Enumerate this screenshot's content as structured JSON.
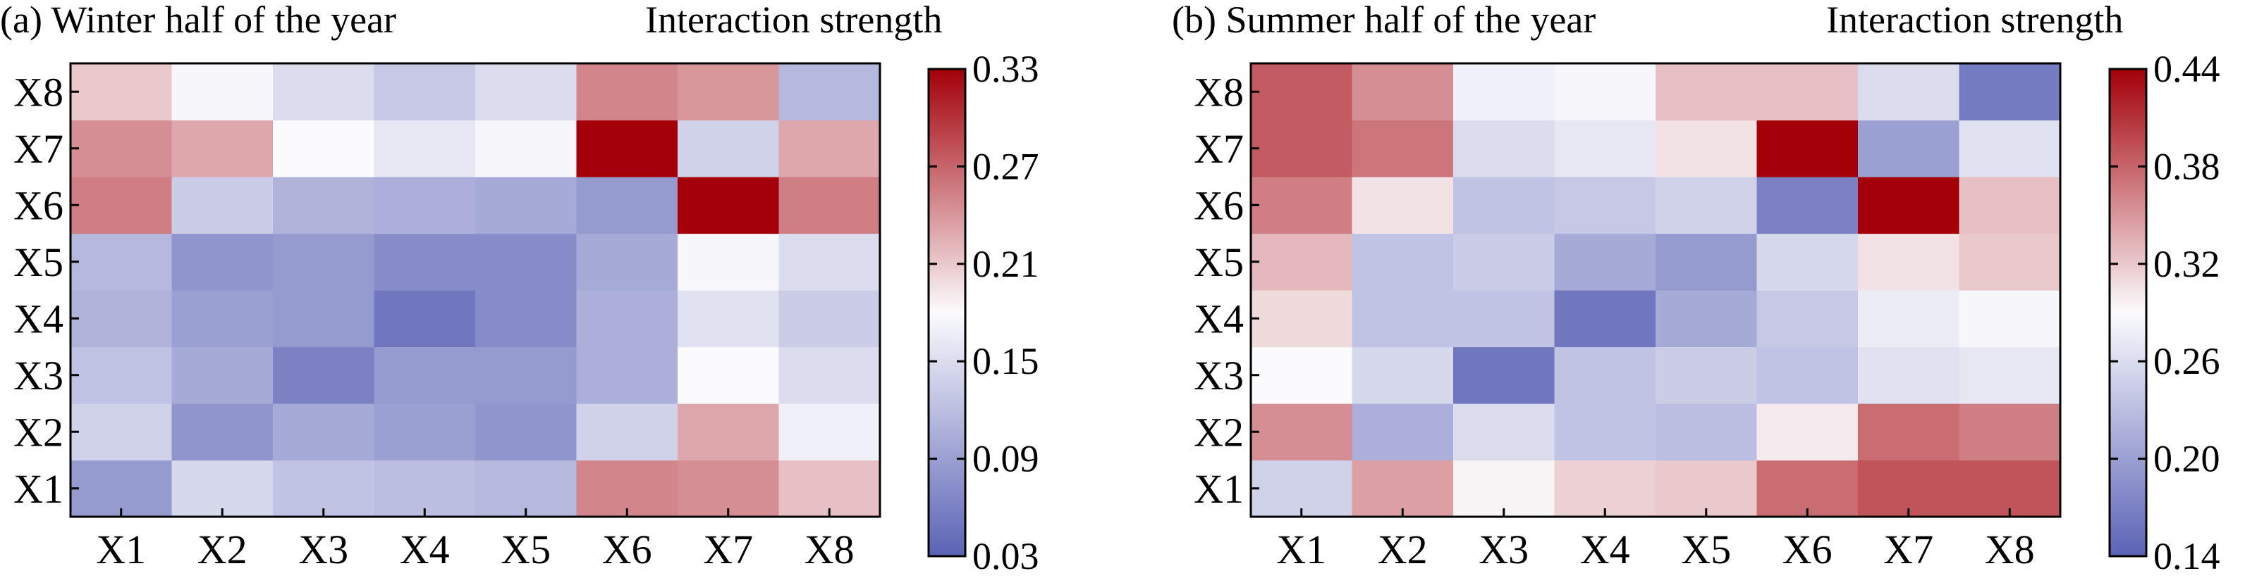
{
  "chart_data": [
    {
      "type": "heatmap",
      "title": "(a) Winter half of the year",
      "colorbar_title": "Interaction strength",
      "x_categories": [
        "X1",
        "X2",
        "X3",
        "X4",
        "X5",
        "X6",
        "X7",
        "X8"
      ],
      "y_categories": [
        "X1",
        "X2",
        "X3",
        "X4",
        "X5",
        "X6",
        "X7",
        "X8"
      ],
      "values": [
        [
          0.085,
          0.145,
          0.125,
          0.12,
          0.115,
          0.25,
          0.245,
          0.215
        ],
        [
          0.14,
          0.08,
          0.1,
          0.09,
          0.08,
          0.14,
          0.23,
          0.17
        ],
        [
          0.125,
          0.1,
          0.06,
          0.085,
          0.085,
          0.105,
          0.18,
          0.15
        ],
        [
          0.11,
          0.09,
          0.085,
          0.05,
          0.07,
          0.105,
          0.155,
          0.135
        ],
        [
          0.115,
          0.08,
          0.085,
          0.07,
          0.07,
          0.1,
          0.175,
          0.15
        ],
        [
          0.255,
          0.135,
          0.11,
          0.105,
          0.1,
          0.085,
          0.33,
          0.255
        ],
        [
          0.245,
          0.23,
          0.18,
          0.16,
          0.175,
          0.33,
          0.14,
          0.23
        ],
        [
          0.21,
          0.175,
          0.15,
          0.13,
          0.15,
          0.25,
          0.24,
          0.115
        ]
      ],
      "colorbar_ticks": [
        "0.33",
        "0.27",
        "0.21",
        "0.15",
        "0.09",
        "0.03"
      ],
      "vmin": 0.03,
      "vmax": 0.33,
      "colormap": [
        "#5b63b5",
        "#fbfbfd",
        "#a30009"
      ]
    },
    {
      "type": "heatmap",
      "title": "(b) Summer half of the year",
      "colorbar_title": "Interaction strength",
      "x_categories": [
        "X1",
        "X2",
        "X3",
        "X4",
        "X5",
        "X6",
        "X7",
        "X8"
      ],
      "y_categories": [
        "X1",
        "X2",
        "X3",
        "X4",
        "X5",
        "X6",
        "X7",
        "X8"
      ],
      "values": [
        [
          0.25,
          0.345,
          0.295,
          0.315,
          0.32,
          0.375,
          0.39,
          0.39
        ],
        [
          0.355,
          0.215,
          0.26,
          0.235,
          0.23,
          0.3,
          0.375,
          0.365
        ],
        [
          0.29,
          0.255,
          0.16,
          0.235,
          0.245,
          0.235,
          0.265,
          0.27
        ],
        [
          0.31,
          0.235,
          0.235,
          0.16,
          0.21,
          0.24,
          0.275,
          0.285
        ],
        [
          0.33,
          0.235,
          0.245,
          0.21,
          0.195,
          0.255,
          0.305,
          0.32
        ],
        [
          0.365,
          0.305,
          0.235,
          0.24,
          0.25,
          0.17,
          0.44,
          0.325
        ],
        [
          0.385,
          0.37,
          0.26,
          0.27,
          0.305,
          0.44,
          0.2,
          0.265
        ],
        [
          0.385,
          0.355,
          0.28,
          0.285,
          0.325,
          0.325,
          0.26,
          0.165
        ]
      ],
      "colorbar_ticks": [
        "0.44",
        "0.38",
        "0.32",
        "0.26",
        "0.20",
        "0.14"
      ],
      "vmin": 0.14,
      "vmax": 0.44,
      "colormap": [
        "#5b63b5",
        "#fbfbfd",
        "#a30009"
      ]
    }
  ]
}
